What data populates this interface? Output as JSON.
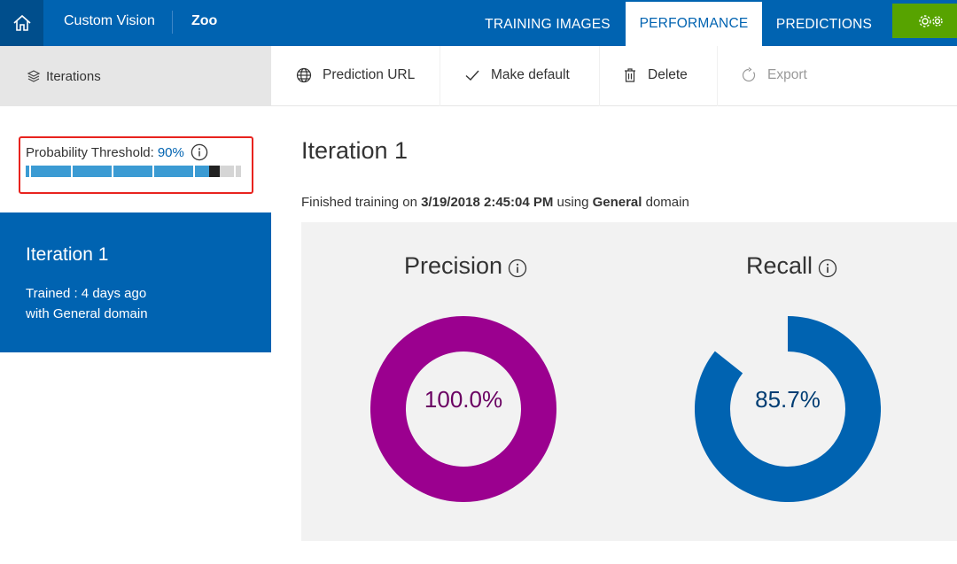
{
  "header": {
    "app_name": "Custom Vision",
    "project_name": "Zoo",
    "tabs": [
      {
        "label": "TRAINING IMAGES",
        "active": false
      },
      {
        "label": "PERFORMANCE",
        "active": true
      },
      {
        "label": "PREDICTIONS",
        "active": false
      }
    ],
    "icons": {
      "home": "home-icon",
      "settings": "gears-icon"
    },
    "colors": {
      "bar": "#0063b1",
      "settings_button": "#57a300"
    }
  },
  "sidebar": {
    "header_label": "Iterations",
    "header_icon": "layers-icon",
    "threshold": {
      "label": "Probability Threshold:",
      "value_text": "90%",
      "value": 0.9
    },
    "iteration_card": {
      "title": "Iteration 1",
      "trained": "Trained : 4 days ago",
      "domain": "with General domain"
    }
  },
  "toolbar": {
    "prediction_url": "Prediction URL",
    "make_default": "Make default",
    "delete": "Delete",
    "export": "Export"
  },
  "main": {
    "title": "Iteration 1",
    "finished_prefix": "Finished training on",
    "finished_date": "3/19/2018 2:45:04 PM",
    "finished_middle": "using",
    "finished_domain": "General",
    "finished_suffix": "domain",
    "metrics": [
      {
        "name": "Precision",
        "value": 100.0,
        "value_text": "100.0%",
        "color": "#9b008f",
        "text_color": "#6a0062"
      },
      {
        "name": "Recall",
        "value": 85.7,
        "value_text": "85.7%",
        "color": "#0063b1",
        "text_color": "#003d73"
      }
    ]
  }
}
